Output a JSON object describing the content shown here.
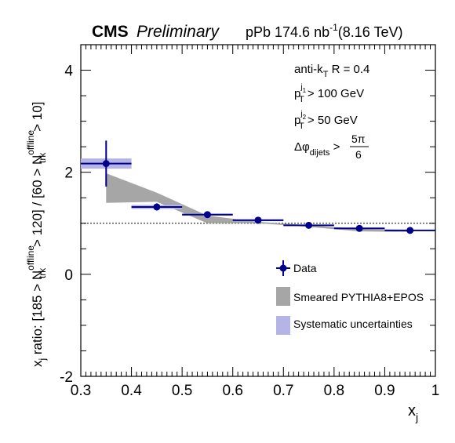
{
  "header": {
    "experiment": "CMS",
    "status": "Preliminary",
    "dataset": "pPb 174.6 nb",
    "dataset_exp": "-1",
    "energy": "(8.16 TeV)"
  },
  "chart_data": {
    "type": "scatter",
    "xlabel": "x",
    "xlabel_sub": "j",
    "ylabel": "x_j ratio: [185 > N_trk^offline > 120] / [60 > N_trk^offline > 10]",
    "ylabel_parts": {
      "p1": "x",
      "p1_sub": "j",
      "p2": " ratio: [185 > N",
      "p2_sup": "offline",
      "p2_sub": "trk",
      "p3": " > 120] / [60 > N",
      "p3_sup": "offline",
      "p3_sub": "trk",
      "p4": " > 10]"
    },
    "xlim": [
      0.3,
      1.0
    ],
    "ylim": [
      -2,
      4.5
    ],
    "x_ticks": [
      "0.3",
      "0.4",
      "0.5",
      "0.6",
      "0.7",
      "0.8",
      "0.9",
      "1"
    ],
    "y_ticks": [
      "-2",
      "0",
      "2",
      "4"
    ],
    "reference_line": 1.0,
    "series": [
      {
        "name": "Data",
        "color": "#00008b",
        "x": [
          0.35,
          0.45,
          0.55,
          0.65,
          0.75,
          0.85,
          0.95
        ],
        "y": [
          2.17,
          1.32,
          1.17,
          1.06,
          0.96,
          0.9,
          0.86
        ],
        "x_err": [
          0.05,
          0.05,
          0.05,
          0.05,
          0.05,
          0.05,
          0.05
        ],
        "y_err": [
          0.45,
          0.07,
          0.04,
          0.04,
          0.03,
          0.03,
          0.03
        ]
      },
      {
        "name": "Smeared PYTHIA8+EPOS",
        "color": "#a6a6a6",
        "x": [
          0.35,
          0.45,
          0.55,
          0.65,
          0.75,
          0.85,
          0.95
        ],
        "y_low": [
          1.4,
          1.42,
          1.0,
          1.0,
          0.93,
          0.84,
          0.83
        ],
        "y_high": [
          1.98,
          1.6,
          1.15,
          1.03,
          0.96,
          0.89,
          0.87
        ]
      },
      {
        "name": "Systematic uncertainties",
        "color": "#b4b4e6",
        "x": [
          0.35,
          0.45,
          0.55,
          0.65,
          0.75,
          0.85,
          0.95
        ],
        "y_low": [
          2.07,
          1.28,
          1.15,
          1.04,
          0.95,
          0.89,
          0.85
        ],
        "y_high": [
          2.27,
          1.36,
          1.19,
          1.08,
          0.97,
          0.91,
          0.87
        ]
      }
    ]
  },
  "annotations": {
    "algo": "anti-k",
    "algo_sub": "T",
    "algo_tail": " R = 0.4",
    "cut1_p": "p",
    "cut1_sup": "j",
    "cut1_supsub": "1",
    "cut1_sub": "T",
    "cut1_tail": " > 100 GeV",
    "cut2_p": "p",
    "cut2_sup": "j",
    "cut2_supsub": "2",
    "cut2_sub": "T",
    "cut2_tail": " > 50 GeV",
    "cut3_head": "Δφ",
    "cut3_sub": "dijets",
    "cut3_gt": " > ",
    "cut3_num": "5π",
    "cut3_den": "6"
  }
}
